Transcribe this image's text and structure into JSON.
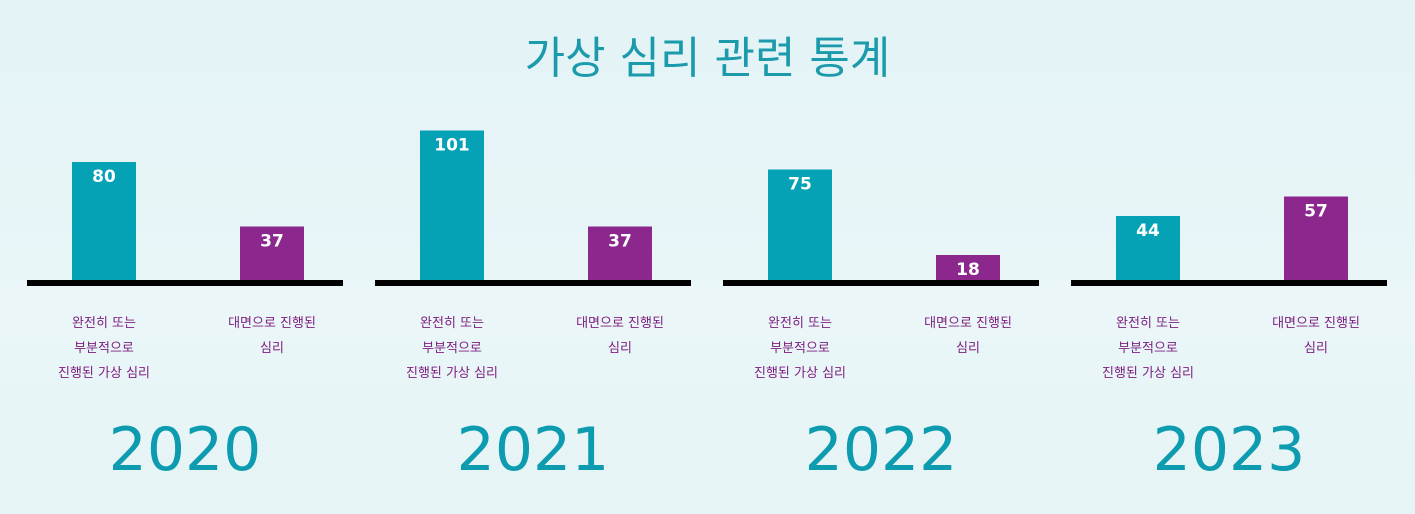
{
  "title": "가상 심리 관련 통계",
  "chart_data": [
    {
      "type": "bar",
      "title": "2020",
      "categories": [
        "완전히 또는\n부분적으로\n진행된 가상 심리",
        "대면으로 진행된\n심리"
      ],
      "values": [
        80,
        37
      ],
      "colors": [
        "#05a2b6",
        "#8c278d"
      ]
    },
    {
      "type": "bar",
      "title": "2021",
      "categories": [
        "완전히 또는\n부분적으로\n진행된 가상 심리",
        "대면으로 진행된\n심리"
      ],
      "values": [
        101,
        37
      ],
      "colors": [
        "#05a2b6",
        "#8c278d"
      ]
    },
    {
      "type": "bar",
      "title": "2022",
      "categories": [
        "완전히 또는\n부분적으로\n진행된 가상 심리",
        "대면으로 진행된\n심리"
      ],
      "values": [
        75,
        18
      ],
      "colors": [
        "#05a2b6",
        "#8c278d"
      ]
    },
    {
      "type": "bar",
      "title": "2023",
      "categories": [
        "완전히 또는\n부분적으로\n진행된 가상 심리",
        "대면으로 진행된\n심리"
      ],
      "values": [
        44,
        57
      ],
      "colors": [
        "#05a2b6",
        "#8c278d"
      ]
    }
  ]
}
